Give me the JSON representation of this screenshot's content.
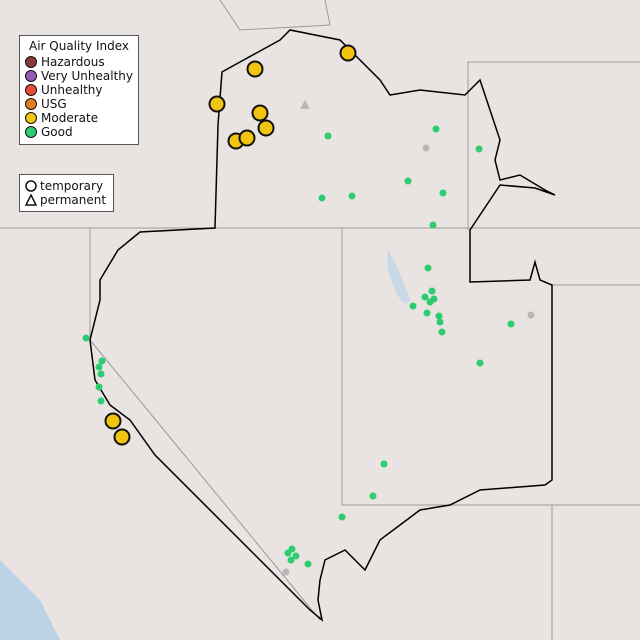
{
  "legend": {
    "title": "Air Quality Index",
    "categories": [
      {
        "label": "Hazardous",
        "color": "#8b3a3a"
      },
      {
        "label": "Very Unhealthy",
        "color": "#9b59b6"
      },
      {
        "label": "Unhealthy",
        "color": "#e74c3c"
      },
      {
        "label": "USG",
        "color": "#e67e22"
      },
      {
        "label": "Moderate",
        "color": "#f1c40f"
      },
      {
        "label": "Good",
        "color": "#2ecc71"
      }
    ],
    "shapes": [
      {
        "label": "temporary",
        "icon": "circle"
      },
      {
        "label": "permanent",
        "icon": "triangle"
      }
    ]
  },
  "colors": {
    "background": "#e9e4e1",
    "water": "#bcd3e6",
    "no_data": "#b8b8b8",
    "boundary": "#000000"
  }
}
